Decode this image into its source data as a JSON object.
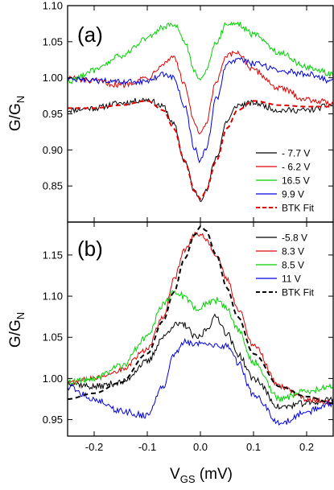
{
  "chart_data": [
    {
      "type": "line",
      "panel_label": "(a)",
      "ylabel_main": "G/G",
      "ylabel_sub": "N",
      "xlim": [
        -0.25,
        0.25
      ],
      "ylim": [
        0.8,
        1.1
      ],
      "yticks": [
        {
          "value": 0.85,
          "label": "0.85"
        },
        {
          "value": 0.9,
          "label": "0.90"
        },
        {
          "value": 0.95,
          "label": "0.95"
        },
        {
          "value": 1.0,
          "label": "1.00"
        },
        {
          "value": 1.05,
          "label": "1.05"
        },
        {
          "value": 1.1,
          "label": "1.10"
        }
      ],
      "legend_position": "lower-right",
      "series": [
        {
          "name": "- 7.7 V",
          "color": "#000000",
          "dashed": false,
          "noise": 0.004,
          "x": [
            -0.25,
            -0.2,
            -0.15,
            -0.1,
            -0.07,
            -0.05,
            -0.03,
            -0.01,
            0,
            0.01,
            0.03,
            0.05,
            0.07,
            0.1,
            0.15,
            0.2,
            0.25
          ],
          "y": [
            0.955,
            0.958,
            0.965,
            0.97,
            0.96,
            0.935,
            0.885,
            0.842,
            0.832,
            0.842,
            0.89,
            0.94,
            0.962,
            0.965,
            0.955,
            0.955,
            0.962
          ]
        },
        {
          "name": "- 6.2 V",
          "color": "#e00000",
          "dashed": false,
          "noise": 0.004,
          "x": [
            -0.25,
            -0.2,
            -0.15,
            -0.1,
            -0.07,
            -0.05,
            -0.03,
            -0.01,
            0,
            0.01,
            0.03,
            0.05,
            0.07,
            0.1,
            0.15,
            0.2,
            0.25
          ],
          "y": [
            1.0,
            0.995,
            0.99,
            1.0,
            1.02,
            1.03,
            0.99,
            0.935,
            0.92,
            0.935,
            0.995,
            1.03,
            1.035,
            1.01,
            0.985,
            0.97,
            0.965
          ]
        },
        {
          "name": "16.5 V",
          "color": "#00d000",
          "dashed": false,
          "noise": 0.004,
          "x": [
            -0.25,
            -0.2,
            -0.15,
            -0.1,
            -0.07,
            -0.05,
            -0.03,
            -0.01,
            0,
            0.01,
            0.03,
            0.05,
            0.07,
            0.1,
            0.15,
            0.2,
            0.25
          ],
          "y": [
            0.995,
            1.01,
            1.03,
            1.055,
            1.07,
            1.075,
            1.05,
            1.01,
            0.995,
            1.01,
            1.05,
            1.075,
            1.075,
            1.06,
            1.035,
            1.015,
            1.005
          ]
        },
        {
          "name": "9.9 V",
          "color": "#0000e0",
          "dashed": false,
          "noise": 0.004,
          "x": [
            -0.25,
            -0.2,
            -0.15,
            -0.1,
            -0.07,
            -0.05,
            -0.03,
            -0.01,
            0,
            0.01,
            0.03,
            0.05,
            0.07,
            0.1,
            0.15,
            0.2,
            0.25
          ],
          "y": [
            0.998,
            0.996,
            0.994,
            0.995,
            1.005,
            1.0,
            0.96,
            0.9,
            0.885,
            0.9,
            0.97,
            1.02,
            1.025,
            1.02,
            1.01,
            1.005,
            0.995
          ]
        },
        {
          "name": "BTK Fit",
          "color": "#e00000",
          "dashed": true,
          "noise": 0,
          "x": [
            -0.25,
            -0.2,
            -0.15,
            -0.1,
            -0.07,
            -0.05,
            -0.03,
            -0.01,
            0,
            0.01,
            0.03,
            0.05,
            0.07,
            0.1,
            0.15,
            0.2,
            0.25
          ],
          "y": [
            0.958,
            0.958,
            0.962,
            0.968,
            0.955,
            0.93,
            0.885,
            0.842,
            0.832,
            0.842,
            0.885,
            0.93,
            0.955,
            0.968,
            0.962,
            0.96,
            0.96
          ]
        }
      ]
    },
    {
      "type": "line",
      "panel_label": "(b)",
      "ylabel_main": "G/G",
      "ylabel_sub": "N",
      "xlabel_main": "V",
      "xlabel_sub": "GS",
      "xlabel_rest": " (mV)",
      "xlim": [
        -0.25,
        0.25
      ],
      "ylim": [
        0.93,
        1.19
      ],
      "xticks": [
        {
          "value": -0.2,
          "label": "-0.2"
        },
        {
          "value": -0.1,
          "label": "-0.1"
        },
        {
          "value": 0.0,
          "label": "0.0"
        },
        {
          "value": 0.1,
          "label": "0.1"
        },
        {
          "value": 0.2,
          "label": "0.2"
        }
      ],
      "yticks": [
        {
          "value": 0.95,
          "label": "0.95"
        },
        {
          "value": 1.0,
          "label": "1.00"
        },
        {
          "value": 1.05,
          "label": "1.05"
        },
        {
          "value": 1.1,
          "label": "1.10"
        },
        {
          "value": 1.15,
          "label": "1.15"
        }
      ],
      "legend_position": "top-right",
      "series": [
        {
          "name": "-5.8 V",
          "color": "#000000",
          "dashed": false,
          "noise": 0.004,
          "x": [
            -0.25,
            -0.2,
            -0.15,
            -0.1,
            -0.07,
            -0.05,
            -0.03,
            -0.01,
            0,
            0.01,
            0.03,
            0.05,
            0.07,
            0.1,
            0.15,
            0.2,
            0.25
          ],
          "y": [
            0.995,
            0.99,
            0.995,
            1.02,
            1.05,
            1.065,
            1.065,
            1.05,
            1.05,
            1.06,
            1.075,
            1.055,
            1.03,
            1.0,
            0.965,
            0.97,
            0.975
          ]
        },
        {
          "name": "8.3 V",
          "color": "#e00000",
          "dashed": false,
          "noise": 0.003,
          "x": [
            -0.25,
            -0.2,
            -0.15,
            -0.1,
            -0.07,
            -0.05,
            -0.03,
            -0.01,
            0,
            0.01,
            0.03,
            0.05,
            0.07,
            0.1,
            0.15,
            0.2,
            0.25
          ],
          "y": [
            0.995,
            1.0,
            1.01,
            1.035,
            1.075,
            1.12,
            1.155,
            1.175,
            1.175,
            1.17,
            1.15,
            1.12,
            1.085,
            1.04,
            0.99,
            0.975,
            0.97
          ]
        },
        {
          "name": "8.5 V",
          "color": "#00d000",
          "dashed": false,
          "noise": 0.004,
          "x": [
            -0.25,
            -0.2,
            -0.15,
            -0.1,
            -0.07,
            -0.05,
            -0.03,
            -0.01,
            0,
            0.01,
            0.03,
            0.05,
            0.07,
            0.1,
            0.15,
            0.2,
            0.25
          ],
          "y": [
            0.995,
            1.0,
            1.015,
            1.05,
            1.09,
            1.105,
            1.1,
            1.085,
            1.085,
            1.09,
            1.095,
            1.085,
            1.06,
            1.02,
            0.975,
            0.985,
            0.99
          ]
        },
        {
          "name": "11 V",
          "color": "#0000e0",
          "dashed": false,
          "noise": 0.004,
          "x": [
            -0.25,
            -0.2,
            -0.15,
            -0.1,
            -0.07,
            -0.05,
            -0.03,
            -0.01,
            0,
            0.01,
            0.03,
            0.05,
            0.07,
            0.1,
            0.15,
            0.2,
            0.25
          ],
          "y": [
            0.99,
            0.975,
            0.96,
            0.955,
            0.99,
            1.03,
            1.045,
            1.04,
            1.045,
            1.04,
            1.04,
            1.04,
            1.02,
            0.98,
            0.945,
            0.96,
            0.97
          ]
        },
        {
          "name": "BTK Fit",
          "color": "#000000",
          "dashed": true,
          "noise": 0,
          "x": [
            -0.25,
            -0.2,
            -0.15,
            -0.1,
            -0.07,
            -0.05,
            -0.03,
            -0.01,
            0,
            0.01,
            0.03,
            0.05,
            0.07,
            0.1,
            0.15,
            0.2,
            0.25
          ],
          "y": [
            0.975,
            0.982,
            0.995,
            1.03,
            1.07,
            1.105,
            1.145,
            1.175,
            1.185,
            1.18,
            1.15,
            1.11,
            1.075,
            1.03,
            0.99,
            0.978,
            0.97
          ]
        }
      ]
    }
  ]
}
